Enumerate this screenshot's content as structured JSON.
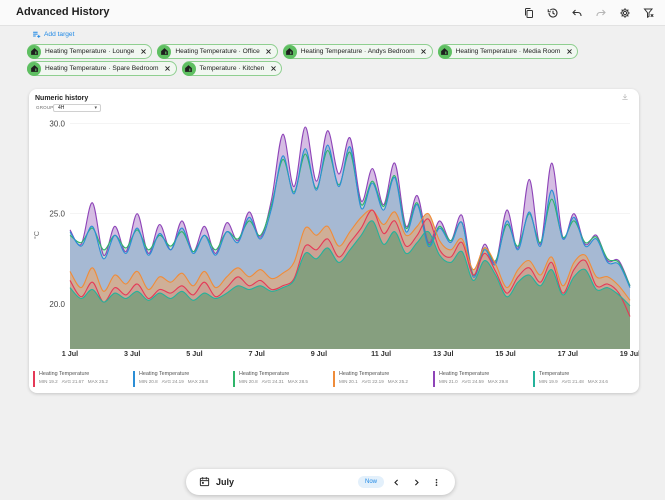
{
  "app": {
    "title": "Advanced History"
  },
  "toolbar": {
    "icons": [
      "copy-icon",
      "history-icon",
      "undo-icon",
      "redo-icon",
      "settings-icon",
      "filter-remove-icon"
    ]
  },
  "add_target": {
    "label": "Add target"
  },
  "targets": [
    {
      "label": "Heating Temperature · Lounge"
    },
    {
      "label": "Heating Temperature · Office"
    },
    {
      "label": "Heating Temperature · Andys Bedroom"
    },
    {
      "label": "Heating Temperature · Media Room"
    },
    {
      "label": "Heating Temperature · Spare Bedroom"
    },
    {
      "label": "Temperature · Kitchen"
    }
  ],
  "card": {
    "title": "Numeric history",
    "group_label": "GROUP",
    "group_value": "4H"
  },
  "chart_data": {
    "type": "area",
    "ylabel": "°C",
    "ylim": [
      17.5,
      30.8
    ],
    "yticks": [
      "30.0",
      "25.0",
      "20.0"
    ],
    "xlabels": [
      "1 Jul",
      "3 Jul",
      "5 Jul",
      "7 Jul",
      "9 Jul",
      "11 Jul",
      "13 Jul",
      "15 Jul",
      "17 Jul",
      "19 Jul"
    ],
    "series": [
      {
        "name": "Heating Temperature",
        "color": "#e53957",
        "min": "19.2",
        "avg": "21.67",
        "max": "25.2",
        "values": [
          21.3,
          20.4,
          21.2,
          20.1,
          20.9,
          20.5,
          21.1,
          20.3,
          20.8,
          20.6,
          21.0,
          20.5,
          21.2,
          20.4,
          20.9,
          21.5,
          21.0,
          21.3,
          20.8,
          21.0,
          21.4,
          23.2,
          23.0,
          23.6,
          22.6,
          23.4,
          24.2,
          25.2,
          23.9,
          24.6,
          23.2,
          23.8,
          24.7,
          23.0,
          22.6,
          23.4,
          21.6,
          22.8,
          21.8,
          20.6,
          21.5,
          22.0,
          21.2,
          22.3,
          20.6,
          21.9,
          22.4,
          21.0,
          21.1,
          20.6,
          19.3
        ]
      },
      {
        "name": "Heating Temperature",
        "color": "#2b8ed6",
        "min": "20.8",
        "avg": "24.19",
        "max": "28.8",
        "values": [
          24.0,
          23.2,
          24.3,
          22.5,
          23.8,
          22.8,
          24.2,
          22.7,
          23.9,
          23.0,
          24.2,
          22.8,
          23.8,
          22.7,
          24.0,
          23.4,
          24.8,
          23.6,
          25.3,
          28.2,
          26.1,
          28.6,
          26.3,
          28.8,
          26.5,
          28.7,
          25.3,
          26.7,
          25.2,
          27.0,
          24.0,
          25.5,
          23.2,
          24.2,
          23.4,
          24.5,
          21.5,
          23.0,
          22.2,
          24.6,
          23.0,
          25.1,
          23.2,
          26.3,
          23.6,
          24.8,
          23.2,
          23.6,
          22.3,
          22.2,
          20.9
        ]
      },
      {
        "name": "Heating Temperature",
        "color": "#2fb56a",
        "min": "20.8",
        "avg": "24.31",
        "max": "28.5",
        "values": [
          23.8,
          23.4,
          24.2,
          23.0,
          23.8,
          23.1,
          24.1,
          23.0,
          23.8,
          23.2,
          24.0,
          22.9,
          23.8,
          23.0,
          24.0,
          23.6,
          24.6,
          23.8,
          25.5,
          28.0,
          26.2,
          28.3,
          26.4,
          28.5,
          26.6,
          28.4,
          25.5,
          26.8,
          25.4,
          27.1,
          24.2,
          25.6,
          23.3,
          24.3,
          23.5,
          24.5,
          21.6,
          23.1,
          22.4,
          24.4,
          23.2,
          25.0,
          23.4,
          25.8,
          23.7,
          24.6,
          23.4,
          23.7,
          22.5,
          22.3,
          21.0
        ]
      },
      {
        "name": "Heating Temperature",
        "color": "#ef8c3a",
        "min": "20.1",
        "avg": "22.19",
        "max": "25.2",
        "values": [
          21.8,
          20.9,
          22.0,
          20.7,
          21.6,
          21.1,
          21.8,
          20.8,
          21.5,
          21.2,
          21.7,
          21.0,
          21.8,
          20.9,
          21.5,
          22.0,
          21.5,
          21.9,
          21.4,
          21.7,
          22.3,
          24.2,
          23.8,
          24.3,
          23.2,
          24.0,
          24.8,
          25.2,
          24.4,
          25.1,
          23.8,
          24.3,
          25.0,
          23.5,
          23.0,
          23.6,
          21.9,
          23.1,
          22.2,
          20.9,
          21.9,
          22.4,
          21.6,
          22.6,
          21.0,
          22.3,
          22.7,
          21.5,
          21.5,
          21.0,
          20.2
        ]
      },
      {
        "name": "Heating Temperature",
        "color": "#8e44b8",
        "min": "21.0",
        "avg": "24.59",
        "max": "29.8",
        "values": [
          24.1,
          23.3,
          25.6,
          22.7,
          24.3,
          22.9,
          25.0,
          22.8,
          24.4,
          23.0,
          24.6,
          22.9,
          24.3,
          22.8,
          24.5,
          23.5,
          25.1,
          23.7,
          25.8,
          29.4,
          26.5,
          29.8,
          26.8,
          29.6,
          27.2,
          29.2,
          25.7,
          27.5,
          25.5,
          27.8,
          24.3,
          26.0,
          23.4,
          24.6,
          23.5,
          24.9,
          21.6,
          23.3,
          22.3,
          25.2,
          23.1,
          26.9,
          23.3,
          27.8,
          23.7,
          25.0,
          23.3,
          23.8,
          22.4,
          22.4,
          21.0
        ]
      },
      {
        "name": "Temperature",
        "color": "#25b29b",
        "min": "19.9",
        "avg": "21.48",
        "max": "24.6",
        "values": [
          20.9,
          20.3,
          20.8,
          20.1,
          20.6,
          20.3,
          20.7,
          20.2,
          20.6,
          20.3,
          20.7,
          20.2,
          20.6,
          20.3,
          20.6,
          21.0,
          20.8,
          21.0,
          20.7,
          20.9,
          21.3,
          22.8,
          22.5,
          23.1,
          22.3,
          23.0,
          23.8,
          24.6,
          23.3,
          24.0,
          22.8,
          23.4,
          24.0,
          22.7,
          22.3,
          22.9,
          21.3,
          22.4,
          21.6,
          20.4,
          21.2,
          21.6,
          21.0,
          21.9,
          20.5,
          21.5,
          21.9,
          20.8,
          20.9,
          20.5,
          19.9
        ]
      }
    ]
  },
  "bottom": {
    "month": "July",
    "now_label": "Now"
  }
}
